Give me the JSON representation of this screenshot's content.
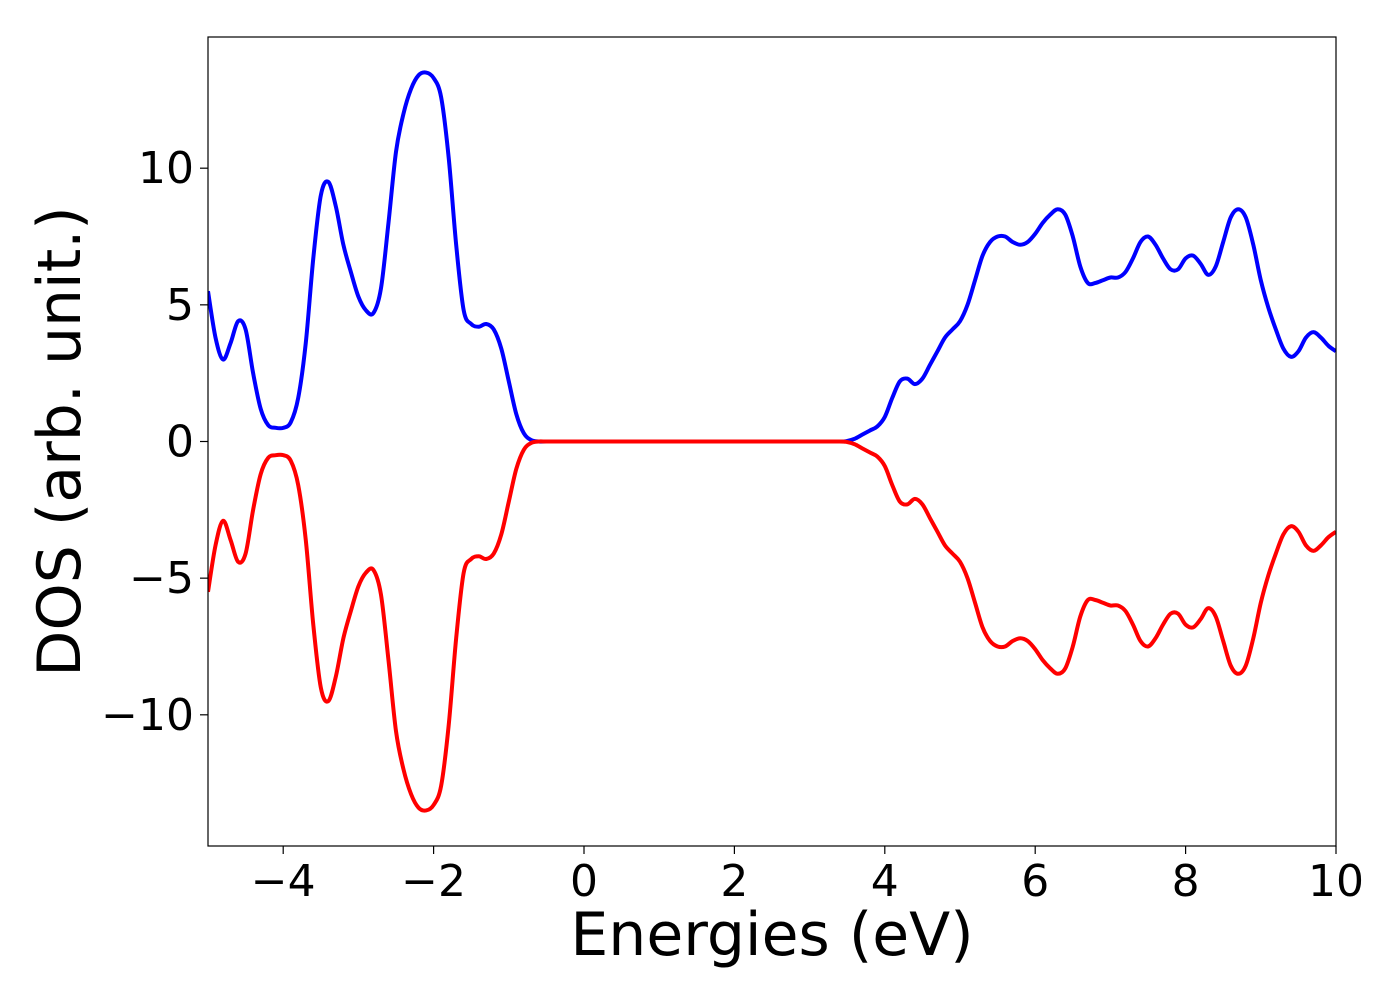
{
  "chart_data": {
    "type": "line",
    "title": "",
    "xlabel": "Energies (eV)",
    "ylabel": "DOS (arb. unit.)",
    "xlim": [
      -5,
      10
    ],
    "ylim": [
      -14.8,
      14.8
    ],
    "xticks": [
      -4,
      -2,
      0,
      2,
      4,
      6,
      8,
      10
    ],
    "xtick_labels": [
      "−4",
      "−2",
      "0",
      "2",
      "4",
      "6",
      "8",
      "10"
    ],
    "yticks": [
      -10,
      -5,
      0,
      5,
      10
    ],
    "ytick_labels": [
      "−10",
      "−5",
      "0",
      "5",
      "10"
    ],
    "grid": false,
    "legend": "none",
    "series": [
      {
        "color": "#0000ff",
        "x": [
          -5.0,
          -4.9,
          -4.8,
          -4.7,
          -4.6,
          -4.5,
          -4.4,
          -4.3,
          -4.2,
          -4.1,
          -4.0,
          -3.9,
          -3.8,
          -3.7,
          -3.6,
          -3.5,
          -3.4,
          -3.3,
          -3.2,
          -3.1,
          -3.0,
          -2.9,
          -2.8,
          -2.7,
          -2.6,
          -2.5,
          -2.4,
          -2.3,
          -2.2,
          -2.1,
          -2.0,
          -1.9,
          -1.8,
          -1.7,
          -1.6,
          -1.5,
          -1.4,
          -1.3,
          -1.2,
          -1.1,
          -1.0,
          -0.9,
          -0.8,
          -0.7,
          -0.6,
          -0.5,
          0.0,
          1.0,
          2.0,
          3.0,
          3.4,
          3.5,
          3.6,
          3.7,
          3.8,
          3.9,
          4.0,
          4.1,
          4.2,
          4.3,
          4.4,
          4.5,
          4.6,
          4.7,
          4.8,
          4.9,
          5.0,
          5.1,
          5.2,
          5.3,
          5.4,
          5.5,
          5.6,
          5.7,
          5.8,
          5.9,
          6.0,
          6.1,
          6.2,
          6.3,
          6.4,
          6.5,
          6.6,
          6.7,
          6.8,
          6.9,
          7.0,
          7.1,
          7.2,
          7.3,
          7.4,
          7.5,
          7.6,
          7.7,
          7.8,
          7.9,
          8.0,
          8.1,
          8.2,
          8.3,
          8.4,
          8.5,
          8.6,
          8.7,
          8.8,
          8.9,
          9.0,
          9.1,
          9.2,
          9.3,
          9.4,
          9.5,
          9.6,
          9.7,
          9.8,
          9.9,
          10.0
        ],
        "y": [
          5.5,
          3.8,
          3.0,
          3.6,
          4.4,
          4.1,
          2.5,
          1.2,
          0.6,
          0.5,
          0.5,
          0.7,
          1.6,
          3.6,
          6.7,
          9.0,
          9.5,
          8.6,
          7.2,
          6.2,
          5.3,
          4.8,
          4.7,
          5.6,
          8.0,
          10.6,
          12.0,
          12.9,
          13.4,
          13.5,
          13.3,
          12.6,
          10.4,
          7.2,
          4.8,
          4.3,
          4.2,
          4.3,
          4.1,
          3.4,
          2.2,
          1.0,
          0.3,
          0.05,
          0.0,
          0.0,
          0.0,
          0.0,
          0.0,
          0.0,
          0.0,
          0.02,
          0.1,
          0.25,
          0.4,
          0.55,
          0.9,
          1.6,
          2.2,
          2.3,
          2.1,
          2.3,
          2.8,
          3.3,
          3.8,
          4.1,
          4.4,
          5.0,
          5.9,
          6.8,
          7.3,
          7.5,
          7.5,
          7.3,
          7.2,
          7.3,
          7.6,
          8.0,
          8.3,
          8.5,
          8.3,
          7.5,
          6.4,
          5.8,
          5.8,
          5.9,
          6.0,
          6.0,
          6.2,
          6.7,
          7.3,
          7.5,
          7.2,
          6.7,
          6.3,
          6.3,
          6.7,
          6.8,
          6.5,
          6.1,
          6.4,
          7.3,
          8.2,
          8.5,
          8.2,
          7.2,
          5.9,
          4.9,
          4.1,
          3.4,
          3.1,
          3.3,
          3.8,
          4.0,
          3.8,
          3.5,
          3.3
        ]
      },
      {
        "color": "#ff0000",
        "x": [
          -5.0,
          -4.9,
          -4.8,
          -4.7,
          -4.6,
          -4.5,
          -4.4,
          -4.3,
          -4.2,
          -4.1,
          -4.0,
          -3.9,
          -3.8,
          -3.7,
          -3.6,
          -3.5,
          -3.4,
          -3.3,
          -3.2,
          -3.1,
          -3.0,
          -2.9,
          -2.8,
          -2.7,
          -2.6,
          -2.5,
          -2.4,
          -2.3,
          -2.2,
          -2.1,
          -2.0,
          -1.9,
          -1.8,
          -1.7,
          -1.6,
          -1.5,
          -1.4,
          -1.3,
          -1.2,
          -1.1,
          -1.0,
          -0.9,
          -0.8,
          -0.7,
          -0.6,
          -0.5,
          0.0,
          1.0,
          2.0,
          3.0,
          3.4,
          3.5,
          3.6,
          3.7,
          3.8,
          3.9,
          4.0,
          4.1,
          4.2,
          4.3,
          4.4,
          4.5,
          4.6,
          4.7,
          4.8,
          4.9,
          5.0,
          5.1,
          5.2,
          5.3,
          5.4,
          5.5,
          5.6,
          5.7,
          5.8,
          5.9,
          6.0,
          6.1,
          6.2,
          6.3,
          6.4,
          6.5,
          6.6,
          6.7,
          6.8,
          6.9,
          7.0,
          7.1,
          7.2,
          7.3,
          7.4,
          7.5,
          7.6,
          7.7,
          7.8,
          7.9,
          8.0,
          8.1,
          8.2,
          8.3,
          8.4,
          8.5,
          8.6,
          8.7,
          8.8,
          8.9,
          9.0,
          9.1,
          9.2,
          9.3,
          9.4,
          9.5,
          9.6,
          9.7,
          9.8,
          9.9,
          10.0
        ],
        "y": [
          -5.5,
          -3.8,
          -2.9,
          -3.6,
          -4.4,
          -4.1,
          -2.5,
          -1.2,
          -0.6,
          -0.5,
          -0.5,
          -0.7,
          -1.6,
          -3.6,
          -6.7,
          -9.0,
          -9.5,
          -8.6,
          -7.2,
          -6.2,
          -5.3,
          -4.8,
          -4.7,
          -5.6,
          -8.0,
          -10.6,
          -12.0,
          -12.9,
          -13.4,
          -13.5,
          -13.3,
          -12.6,
          -10.4,
          -7.2,
          -4.8,
          -4.3,
          -4.2,
          -4.3,
          -4.1,
          -3.4,
          -2.2,
          -1.0,
          -0.3,
          -0.05,
          0.0,
          0.0,
          0.0,
          0.0,
          0.0,
          0.0,
          0.0,
          -0.02,
          -0.1,
          -0.25,
          -0.4,
          -0.55,
          -0.9,
          -1.6,
          -2.2,
          -2.3,
          -2.1,
          -2.3,
          -2.8,
          -3.3,
          -3.8,
          -4.1,
          -4.4,
          -5.0,
          -5.9,
          -6.8,
          -7.3,
          -7.5,
          -7.5,
          -7.3,
          -7.2,
          -7.3,
          -7.6,
          -8.0,
          -8.3,
          -8.5,
          -8.3,
          -7.5,
          -6.4,
          -5.8,
          -5.8,
          -5.9,
          -6.0,
          -6.0,
          -6.2,
          -6.7,
          -7.3,
          -7.5,
          -7.2,
          -6.7,
          -6.3,
          -6.3,
          -6.7,
          -6.8,
          -6.5,
          -6.1,
          -6.4,
          -7.3,
          -8.2,
          -8.5,
          -8.2,
          -7.2,
          -5.9,
          -4.9,
          -4.1,
          -3.4,
          -3.1,
          -3.3,
          -3.8,
          -4.0,
          -3.8,
          -3.5,
          -3.3
        ]
      }
    ]
  }
}
